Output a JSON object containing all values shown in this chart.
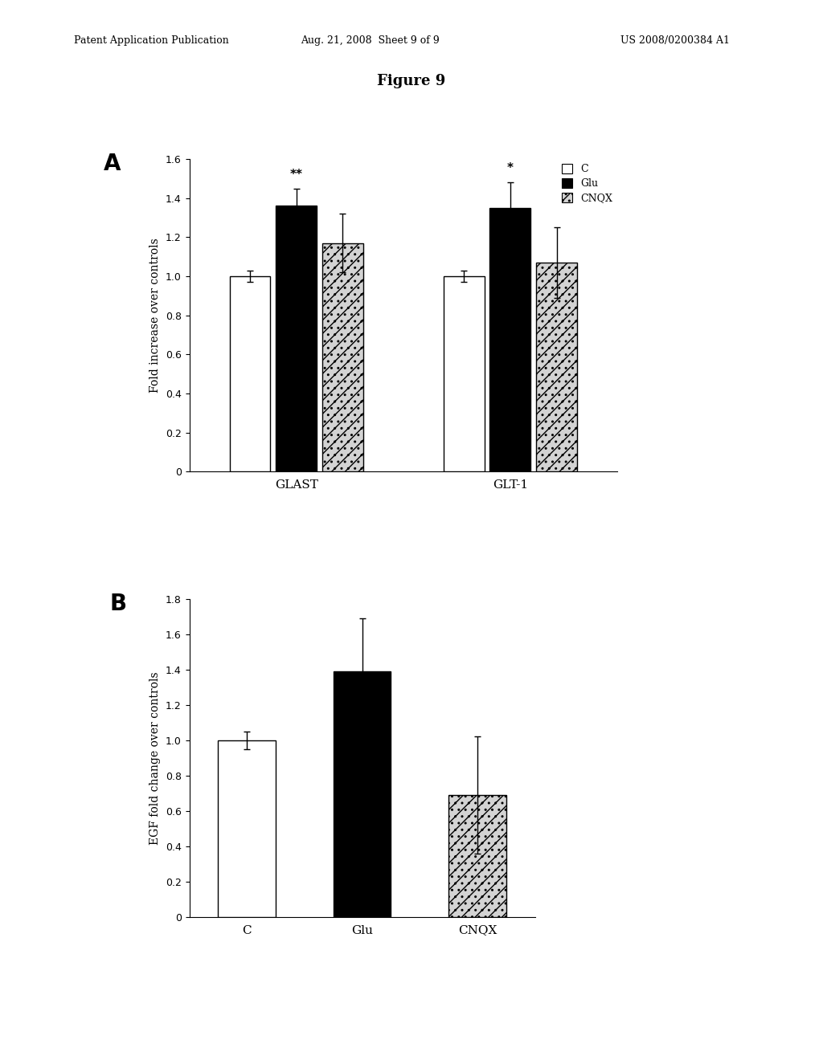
{
  "figure_title": "Figure 9",
  "header_left": "Patent Application Publication",
  "header_mid": "Aug. 21, 2008  Sheet 9 of 9",
  "header_right": "US 2008/0200384 A1",
  "panel_A": {
    "label": "A",
    "ylabel": "Fold increase over controls",
    "ylim": [
      0,
      1.6
    ],
    "yticks": [
      0,
      0.2,
      0.4,
      0.6,
      0.8,
      1.0,
      1.2,
      1.4,
      1.6
    ],
    "groups": [
      "GLAST",
      "GLT-1"
    ],
    "categories": [
      "C",
      "Glu",
      "CNQX"
    ],
    "bar_colors": [
      "white",
      "black",
      "lightgray"
    ],
    "values": {
      "GLAST": [
        1.0,
        1.36,
        1.17
      ],
      "GLT-1": [
        1.0,
        1.35,
        1.07
      ]
    },
    "errors": {
      "GLAST": [
        0.03,
        0.09,
        0.15
      ],
      "GLT-1": [
        0.03,
        0.13,
        0.18
      ]
    },
    "sig_labels": [
      "**",
      "*"
    ],
    "legend_labels": [
      "C",
      "Glu",
      "CNQX"
    ]
  },
  "panel_B": {
    "label": "B",
    "ylabel": "EGF fold change over controls",
    "ylim": [
      0,
      1.8
    ],
    "yticks": [
      0,
      0.2,
      0.4,
      0.6,
      0.8,
      1.0,
      1.2,
      1.4,
      1.6,
      1.8
    ],
    "categories": [
      "C",
      "Glu",
      "CNQX"
    ],
    "bar_colors": [
      "white",
      "black",
      "lightgray"
    ],
    "values": [
      1.0,
      1.39,
      0.69
    ],
    "errors": [
      0.05,
      0.3,
      0.33
    ]
  }
}
